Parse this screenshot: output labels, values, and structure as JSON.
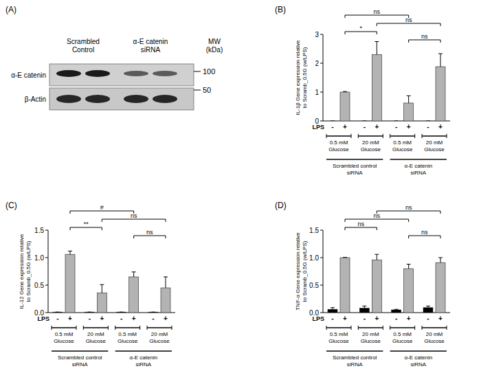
{
  "blot": {
    "panel_label": "(A)",
    "lanes": [
      "Scrambled Control",
      "α-E catenin siRNA"
    ],
    "mw_header": "MW (kDa)",
    "rows": [
      {
        "label": "α-E catenin",
        "mw": 100
      },
      {
        "label": "β-Actin",
        "mw": 50
      }
    ]
  },
  "chart_data": [
    {
      "type": "bar",
      "panel_label": "(B)",
      "y_label": "IL-1β Gene expression relative to Scramb_0.5G (w/LPS)",
      "x_label": "LPS",
      "categories": [
        "-",
        "+",
        "-",
        "+",
        "-",
        "+",
        "-",
        "+"
      ],
      "groups": [
        "0.5 mM Glucose",
        "20 mM Glucose",
        "0.5 mM Glucose",
        "20 mM Glucose"
      ],
      "super_groups": [
        "Scrambled control siRNA",
        "α-E catenin siRNA"
      ],
      "values": [
        0,
        1.0,
        0,
        2.3,
        0,
        0.62,
        0,
        1.88
      ],
      "errors": [
        0,
        0.02,
        0,
        0.45,
        0,
        0.25,
        0,
        0.45
      ],
      "colors": [
        "#000000",
        "#b3b3b3",
        "#000000",
        "#b3b3b3",
        "#000000",
        "#b3b3b3",
        "#000000",
        "#b3b3b3"
      ],
      "ylim": [
        0,
        3
      ],
      "yticks": [
        0,
        1,
        2,
        3
      ],
      "annotations": [
        {
          "text": "ns",
          "between": [
            1,
            5
          ]
        },
        {
          "text": "ns",
          "between": [
            3,
            7
          ]
        },
        {
          "text": "*",
          "between": [
            1,
            3
          ]
        },
        {
          "text": "ns",
          "between": [
            5,
            7
          ]
        }
      ]
    },
    {
      "type": "bar",
      "panel_label": "(C)",
      "y_label": "IL-12 Gene expression relative to Scramb_0.5G (w/LPS)",
      "x_label": "LPS",
      "categories": [
        "-",
        "+",
        "-",
        "+",
        "-",
        "+",
        "-",
        "+"
      ],
      "groups": [
        "0.5 mM Glucose",
        "20 mM Glucose",
        "0.5 mM Glucose",
        "20 mM Glucose"
      ],
      "super_groups": [
        "Scrambled control siRNA",
        "α-E catenin siRNA"
      ],
      "values": [
        0.01,
        1.06,
        0.01,
        0.36,
        0.01,
        0.65,
        0.01,
        0.45
      ],
      "errors": [
        0,
        0.06,
        0,
        0.15,
        0,
        0.09,
        0,
        0.2
      ],
      "colors": [
        "#000000",
        "#b3b3b3",
        "#000000",
        "#b3b3b3",
        "#000000",
        "#b3b3b3",
        "#000000",
        "#b3b3b3"
      ],
      "ylim": [
        0,
        1.5
      ],
      "yticks": [
        {
          "value": 0,
          "label": "0.0"
        },
        {
          "value": 0.5,
          "label": "0.5"
        },
        {
          "value": 1,
          "label": "1.0"
        },
        {
          "value": 1.5,
          "label": "1.5"
        }
      ],
      "annotations": [
        {
          "text": "#",
          "between": [
            1,
            5
          ]
        },
        {
          "text": "ns",
          "between": [
            3,
            7
          ]
        },
        {
          "text": "**",
          "between": [
            1,
            3
          ]
        },
        {
          "text": "ns",
          "between": [
            5,
            7
          ]
        }
      ]
    },
    {
      "type": "bar",
      "panel_label": "(D)",
      "y_label": "TNF-α Gene expression relative to Scramb_0.5G (w/LPS)",
      "x_label": "LPS",
      "categories": [
        "-",
        "+",
        "-",
        "+",
        "-",
        "+",
        "-",
        "+"
      ],
      "groups": [
        "0.5 mM Glucose",
        "20 mM Glucose",
        "0.5 mM Glucose",
        "20 mM Glucose"
      ],
      "super_groups": [
        "Scrambled control siRNA",
        "α-E catenin siRNA"
      ],
      "values": [
        0.06,
        1.0,
        0.08,
        0.96,
        0.05,
        0.8,
        0.09,
        0.91
      ],
      "errors": [
        0.03,
        0.005,
        0.04,
        0.1,
        0.01,
        0.08,
        0.03,
        0.09
      ],
      "colors": [
        "#000000",
        "#b3b3b3",
        "#000000",
        "#b3b3b3",
        "#000000",
        "#b3b3b3",
        "#000000",
        "#b3b3b3"
      ],
      "ylim": [
        0,
        1.5
      ],
      "yticks": [
        {
          "value": 0,
          "label": "0.0"
        },
        {
          "value": 0.5,
          "label": "0.5"
        },
        {
          "value": 1,
          "label": "1.0"
        },
        {
          "value": 1.5,
          "label": "1.5"
        }
      ],
      "annotations": [
        {
          "text": "ns",
          "between": [
            3,
            7
          ]
        },
        {
          "text": "ns",
          "between": [
            1,
            5
          ]
        },
        {
          "text": "ns",
          "between": [
            1,
            3
          ]
        },
        {
          "text": "ns",
          "between": [
            5,
            7
          ]
        }
      ]
    }
  ]
}
